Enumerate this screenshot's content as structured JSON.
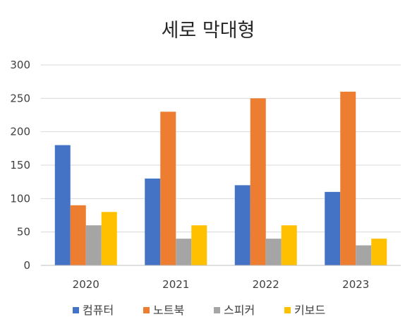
{
  "chart_data": {
    "type": "bar",
    "title": "세로 막대형",
    "xlabel": "",
    "ylabel": "",
    "categories": [
      "2020",
      "2021",
      "2022",
      "2023"
    ],
    "series": [
      {
        "name": "컴퓨터",
        "color": "#4472C4",
        "values": [
          180,
          130,
          120,
          110
        ]
      },
      {
        "name": "노트북",
        "color": "#ED7D31",
        "values": [
          90,
          230,
          250,
          260
        ]
      },
      {
        "name": "스피커",
        "color": "#A5A5A5",
        "values": [
          60,
          40,
          40,
          30
        ]
      },
      {
        "name": "키보드",
        "color": "#FFC000",
        "values": [
          80,
          60,
          60,
          40
        ]
      }
    ],
    "ylim": [
      0,
      300
    ],
    "yticks": [
      "0",
      "50",
      "100",
      "150",
      "200",
      "250",
      "300"
    ],
    "grid": true,
    "legend_position": "bottom"
  }
}
